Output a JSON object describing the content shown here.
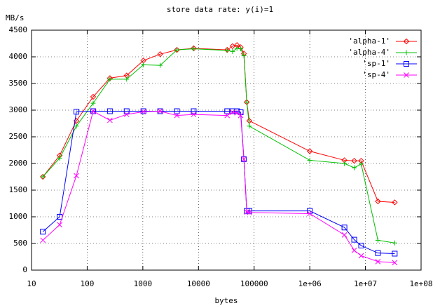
{
  "chart_data": {
    "type": "line",
    "title": "store data rate: y(i)=1",
    "x_label": "bytes",
    "y_label": "MB/s",
    "log_x": true,
    "grid": true,
    "legend_position": "top-right",
    "x": [
      16,
      32,
      64,
      128,
      256,
      512,
      1024,
      2048,
      4096,
      8192,
      32768,
      40960,
      49152,
      57344,
      65536,
      73728,
      81920,
      1000000,
      4194304,
      6291456,
      8388608,
      16777216,
      33554432
    ],
    "series": [
      {
        "name": "'alpha-1'",
        "color": "#ff0000",
        "marker": "diamond",
        "values": [
          1750,
          2150,
          2800,
          3250,
          3600,
          3650,
          3930,
          4050,
          4130,
          4160,
          4130,
          4200,
          4220,
          4180,
          4060,
          3150,
          2800,
          2230,
          2060,
          2050,
          2050,
          1290,
          1270
        ]
      },
      {
        "name": "'alpha-4'",
        "color": "#00c000",
        "marker": "plus",
        "values": [
          1750,
          2100,
          2700,
          3130,
          3580,
          3580,
          3850,
          3840,
          4130,
          4150,
          4120,
          4100,
          4160,
          4150,
          4020,
          3150,
          2700,
          2060,
          2000,
          1920,
          1990,
          560,
          510
        ]
      },
      {
        "name": "'sp-1'",
        "color": "#0000ff",
        "marker": "square",
        "values": [
          720,
          1000,
          2970,
          2980,
          2980,
          2980,
          2980,
          2980,
          2980,
          2980,
          2980,
          2980,
          2980,
          2960,
          2080,
          1110,
          1110,
          1110,
          800,
          570,
          460,
          320,
          310
        ]
      },
      {
        "name": "'sp-4'",
        "color": "#ff00ff",
        "marker": "cross",
        "values": [
          560,
          850,
          1770,
          2980,
          2810,
          2920,
          2970,
          2980,
          2900,
          2920,
          2900,
          2960,
          2950,
          2900,
          2080,
          1090,
          1080,
          1060,
          660,
          370,
          270,
          160,
          140
        ]
      }
    ],
    "xlim": [
      10,
      100000000
    ],
    "xticks": [
      10,
      100,
      1000,
      10000,
      100000,
      {
        "value": 1000000,
        "label": "1e+06"
      },
      {
        "value": 10000000,
        "label": "1e+07"
      },
      {
        "value": 100000000,
        "label": "1e+08"
      }
    ],
    "ylim": [
      0,
      4500
    ],
    "yticks": [
      0,
      500,
      1000,
      1500,
      2000,
      2500,
      3000,
      3500,
      4000,
      4500
    ]
  }
}
